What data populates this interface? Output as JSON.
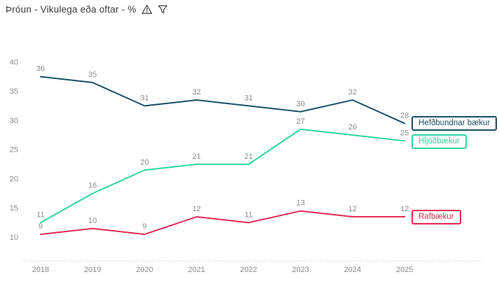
{
  "header": {
    "title": "Þróun - Vikulega eða oftar - %",
    "icons": [
      {
        "name": "warning-icon"
      },
      {
        "name": "filter-icon"
      }
    ]
  },
  "colors": {
    "title_text": "#3a3a3a",
    "icon_stroke": "#4a4a4a",
    "label_gray": "#8a8a8a",
    "axis_dotted_line": "#d2d2d2",
    "background": "#ffffff"
  },
  "chart_data": {
    "type": "line",
    "x": [
      "2018",
      "2019",
      "2020",
      "2021",
      "2022",
      "2023",
      "2024",
      "2025"
    ],
    "series": [
      {
        "name": "Hefðbundnar bækur",
        "color": "#1d4f66",
        "values": [
          36,
          35,
          31,
          32,
          31,
          30,
          32,
          28
        ]
      },
      {
        "name": "Hljóðbækur",
        "color": "#2fd5a2",
        "values": [
          11,
          16,
          20,
          21,
          21,
          27,
          26,
          25
        ]
      },
      {
        "name": "Rafbækur",
        "color": "#e22c55",
        "values": [
          9,
          10,
          9,
          12,
          11,
          13,
          12,
          12
        ]
      }
    ],
    "yticks": [
      40,
      35,
      30,
      25,
      20,
      15,
      10
    ],
    "ylim": [
      10,
      40
    ],
    "xlabel": "",
    "ylabel": "",
    "grid": false,
    "data_labels": true,
    "legend_position": "right-of-line-ends"
  }
}
